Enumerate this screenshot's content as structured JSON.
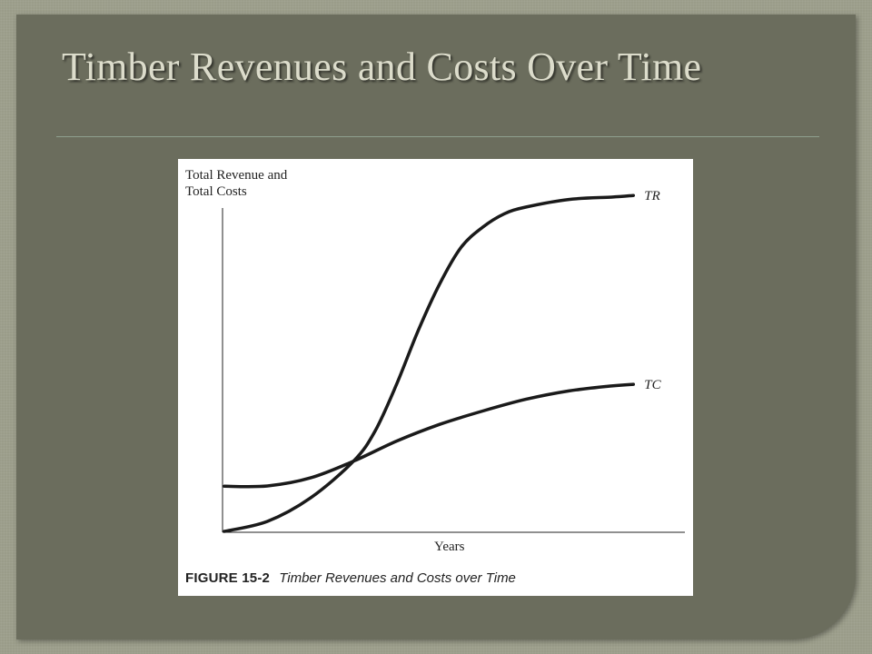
{
  "slide": {
    "title": "Timber Revenues and Costs Over Time"
  },
  "chart_data": {
    "type": "line",
    "title": "",
    "ylabel_lines": [
      "Total Revenue and",
      "Total Costs"
    ],
    "xlabel": "Years",
    "caption_number": "FIGURE 15-2",
    "caption_text": "Timber Revenues and Costs over Time",
    "grid": false,
    "ylim": [
      0,
      100
    ],
    "xlim": [
      0,
      100
    ],
    "series": [
      {
        "name": "TR",
        "x": [
          0,
          10,
          20,
          30,
          35,
          40,
          45,
          50,
          55,
          60,
          65,
          70,
          80,
          90,
          95
        ],
        "values": [
          0,
          3,
          10,
          21,
          30,
          44,
          60,
          74,
          85,
          91,
          95,
          97,
          99.3,
          100,
          100.5
        ]
      },
      {
        "name": "TC",
        "x": [
          0,
          10,
          20,
          30,
          40,
          50,
          60,
          70,
          80,
          90,
          95
        ],
        "values": [
          13.5,
          13.6,
          16,
          21,
          27,
          32,
          36,
          39.5,
          42,
          43.5,
          44
        ]
      }
    ]
  }
}
